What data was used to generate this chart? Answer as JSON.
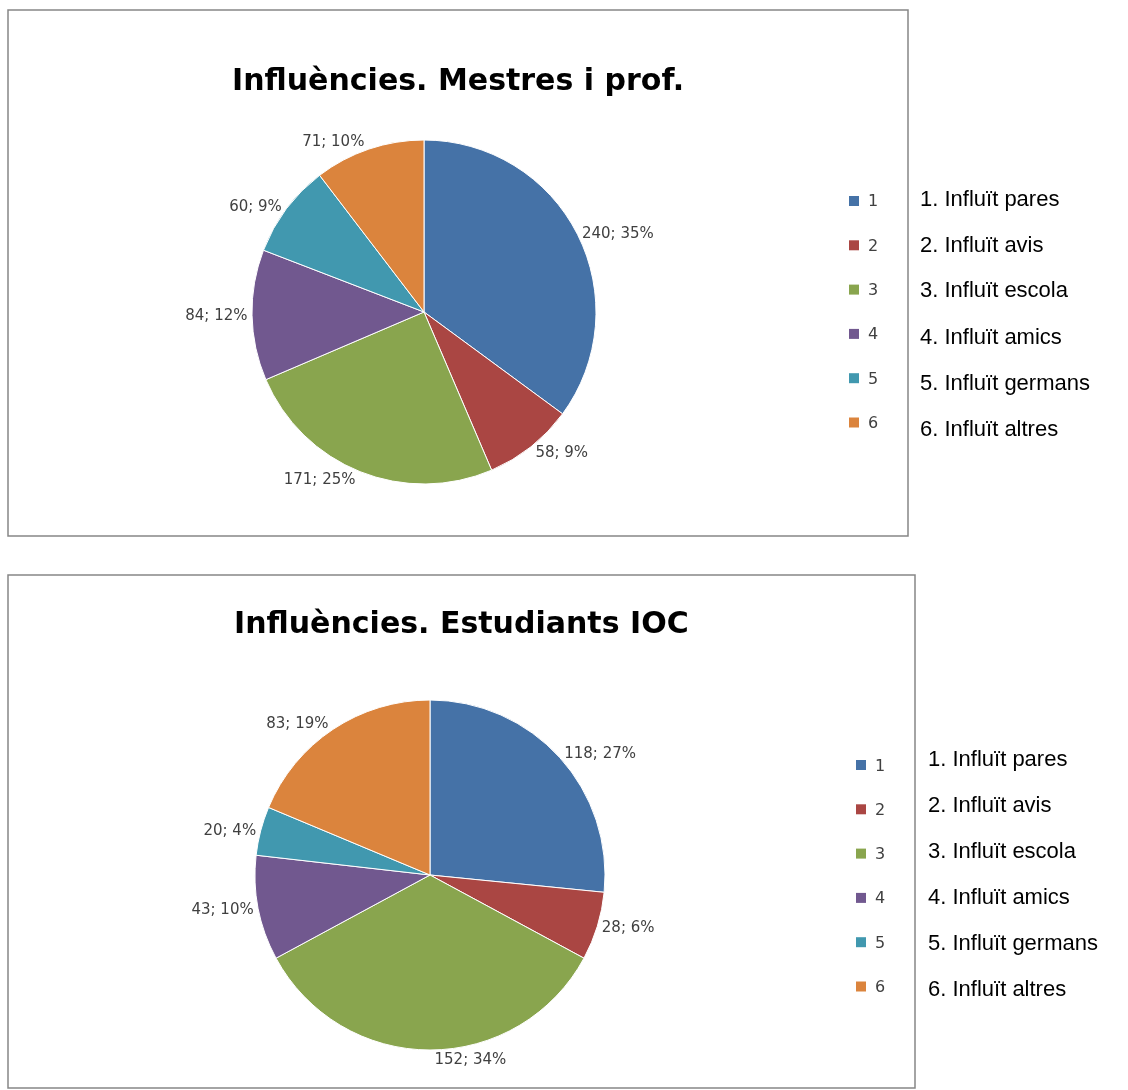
{
  "chart_data": [
    {
      "type": "pie",
      "title": "Influències. Mestres i prof.",
      "categories": [
        "1",
        "2",
        "3",
        "4",
        "5",
        "6"
      ],
      "values": [
        240,
        58,
        171,
        84,
        60,
        71
      ],
      "colors": [
        "#4572a7",
        "#aa4643",
        "#89a54e",
        "#71588f",
        "#4198af",
        "#db843d"
      ],
      "value_labels": [
        "240; 35%",
        "58; 9%",
        "171; 25%",
        "84; 12%",
        "60; 9%",
        "71; 10%"
      ],
      "legend": "right",
      "annotations": [
        "1. Influït pares",
        "2. Influït avis",
        "3. Influït escola",
        "4. Influït amics",
        "5. Influït germans",
        "6. Influït altres"
      ]
    },
    {
      "type": "pie",
      "title": "Influències. Estudiants IOC",
      "categories": [
        "1",
        "2",
        "3",
        "4",
        "5",
        "6"
      ],
      "values": [
        118,
        28,
        152,
        43,
        20,
        83
      ],
      "colors": [
        "#4572a7",
        "#aa4643",
        "#89a54e",
        "#71588f",
        "#4198af",
        "#db843d"
      ],
      "value_labels": [
        "118; 27%",
        "28; 6%",
        "152; 34%",
        "43; 10%",
        "20; 4%",
        "83; 19%"
      ],
      "legend": "right",
      "annotations": [
        "1. Influït pares",
        "2. Influït avis",
        "3. Influït escola",
        "4. Influït amics",
        "5. Influït germans",
        "6. Influït altres"
      ]
    }
  ]
}
